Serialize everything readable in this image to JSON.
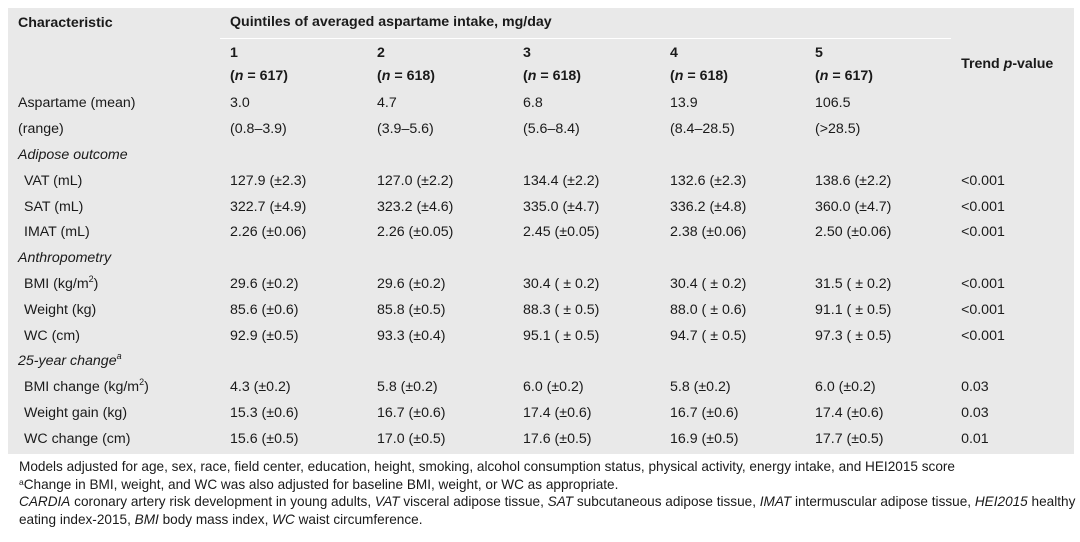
{
  "table": {
    "header_characteristic": "Characteristic",
    "header_quintiles_title": "Quintiles of averaged aspartame intake, mg/day",
    "header_trend": "Trend p-value",
    "header_trend_parts": [
      "Trend ",
      "p",
      "-value"
    ],
    "quintiles": [
      {
        "num": "1",
        "n_label": "n",
        "n_value": "617"
      },
      {
        "num": "2",
        "n_label": "n",
        "n_value": "618"
      },
      {
        "num": "3",
        "n_label": "n",
        "n_value": "618"
      },
      {
        "num": "4",
        "n_label": "n",
        "n_value": "618"
      },
      {
        "num": "5",
        "n_label": "n",
        "n_value": "617"
      }
    ],
    "rows": [
      {
        "kind": "row",
        "label": "Aspartame (mean)",
        "values": [
          "3.0",
          "4.7",
          "6.8",
          "13.9",
          "106.5"
        ],
        "trend": ""
      },
      {
        "kind": "row",
        "label": "(range)",
        "values": [
          "(0.8–3.9)",
          "(3.9–5.6)",
          "(5.6–8.4)",
          "(8.4–28.5)",
          "(>28.5)"
        ],
        "trend": ""
      },
      {
        "kind": "section",
        "label": "Adipose outcome"
      },
      {
        "kind": "row",
        "indent": true,
        "label": "VAT (mL)",
        "values": [
          "127.9 (±2.3)",
          "127.0 (±2.2)",
          "134.4 (±2.2)",
          "132.6 (±2.3)",
          "138.6 (±2.2)"
        ],
        "trend": "<0.001"
      },
      {
        "kind": "row",
        "indent": true,
        "label": "SAT (mL)",
        "values": [
          "322.7 (±4.9)",
          "323.2 (±4.6)",
          "335.0 (±4.7)",
          "336.2 (±4.8)",
          "360.0 (±4.7)"
        ],
        "trend": "<0.001"
      },
      {
        "kind": "row",
        "indent": true,
        "label": "IMAT (mL)",
        "values": [
          "2.26 (±0.06)",
          "2.26 (±0.05)",
          "2.45 (±0.05)",
          "2.38 (±0.06)",
          "2.50 (±0.06)"
        ],
        "trend": "<0.001"
      },
      {
        "kind": "section",
        "label": "Anthropometry"
      },
      {
        "kind": "row",
        "indent": true,
        "label": "BMI (kg/m",
        "label_sup": "2",
        "label_after": ")",
        "values": [
          "29.6 (±0.2)",
          "29.6 (±0.2)",
          "30.4 ( ± 0.2)",
          "30.4 ( ± 0.2)",
          "31.5 ( ± 0.2)"
        ],
        "trend": "<0.001"
      },
      {
        "kind": "row",
        "indent": true,
        "label": "Weight (kg)",
        "values": [
          "85.6 (±0.6)",
          "85.8 (±0.5)",
          "88.3 ( ± 0.5)",
          "88.0 ( ± 0.6)",
          "91.1 ( ± 0.5)"
        ],
        "trend": "<0.001"
      },
      {
        "kind": "row",
        "indent": true,
        "label": "WC (cm)",
        "values": [
          "92.9 (±0.5)",
          "93.3 (±0.4)",
          "95.1 ( ± 0.5)",
          "94.7 ( ± 0.5)",
          "97.3 ( ± 0.5)"
        ],
        "trend": "<0.001"
      },
      {
        "kind": "section",
        "label": "25-year change",
        "label_sup": "a"
      },
      {
        "kind": "row",
        "indent": true,
        "label": "BMI change (kg/m",
        "label_sup": "2",
        "label_after": ")",
        "values": [
          "4.3 (±0.2)",
          "5.8 (±0.2)",
          "6.0 (±0.2)",
          "5.8 (±0.2)",
          "6.0 (±0.2)"
        ],
        "trend": "0.03"
      },
      {
        "kind": "row",
        "indent": true,
        "label": "Weight gain (kg)",
        "values": [
          "15.3 (±0.6)",
          "16.7 (±0.6)",
          "17.4 (±0.6)",
          "16.7 (±0.6)",
          "17.4 (±0.6)"
        ],
        "trend": "0.03"
      },
      {
        "kind": "row",
        "indent": true,
        "label": "WC change (cm)",
        "values": [
          "15.6 (±0.5)",
          "17.0 (±0.5)",
          "17.6 (±0.5)",
          "16.9 (±0.5)",
          "17.7 (±0.5)"
        ],
        "trend": "0.01"
      }
    ]
  },
  "notes": {
    "line1": "Models adjusted for age, sex, race, field center, education, height, smoking, alcohol consumption status, physical activity, energy intake, and HEI2015 score",
    "line2_sup": "a",
    "line2": "Change in BMI, weight, and WC was also adjusted for baseline BMI, weight, or WC as appropriate.",
    "abbreviations": [
      {
        "term": "CARDIA",
        "def": " coronary artery risk development in young adults, "
      },
      {
        "term": "VAT",
        "def": " visceral adipose tissue, "
      },
      {
        "term": "SAT",
        "def": " subcutaneous adipose tissue, "
      },
      {
        "term": "IMAT",
        "def": " intermuscular adipose tissue, "
      },
      {
        "term": "HEI2015",
        "def": " healthy eating index-2015, "
      },
      {
        "term": "BMI",
        "def": " body mass index, "
      },
      {
        "term": "WC",
        "def": " waist circumference."
      }
    ]
  },
  "colors": {
    "table_background": "#e9e9e9",
    "text": "#1a1a1a"
  }
}
